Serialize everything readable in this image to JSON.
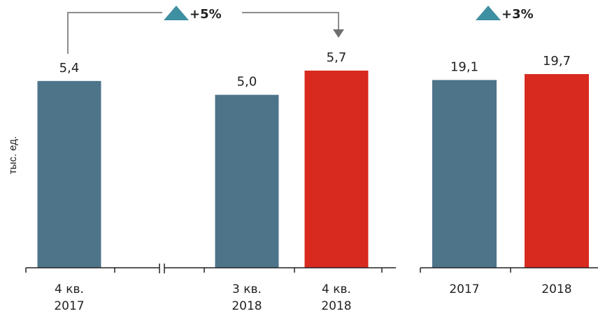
{
  "chart_data": [
    {
      "type": "bar",
      "ylabel": "тыс. ед.",
      "categories": [
        "4 кв.\n2017",
        "3 кв.\n2018",
        "4 кв.\n2018"
      ],
      "values": [
        5.4,
        5.0,
        5.7
      ],
      "value_labels": [
        "5,4",
        "5,0",
        "5,7"
      ],
      "bar_colors": [
        "#4d7489",
        "#4d7489",
        "#d82a1e"
      ],
      "axis_break": true,
      "annotation": {
        "label": "+5%",
        "from": "4 кв.\n2017",
        "to": "4 кв.\n2018"
      }
    },
    {
      "type": "bar",
      "categories": [
        "2017",
        "2018"
      ],
      "values": [
        19.1,
        19.7
      ],
      "value_labels": [
        "19,1",
        "19,7"
      ],
      "bar_colors": [
        "#4d7489",
        "#d82a1e"
      ],
      "annotation": {
        "label": "+3%"
      }
    }
  ],
  "colors": {
    "base": "#4d7489",
    "highlight": "#d82a1e",
    "triangle": "#3f8fa2",
    "connector": "#8c8c8c",
    "axis": "#222222"
  }
}
